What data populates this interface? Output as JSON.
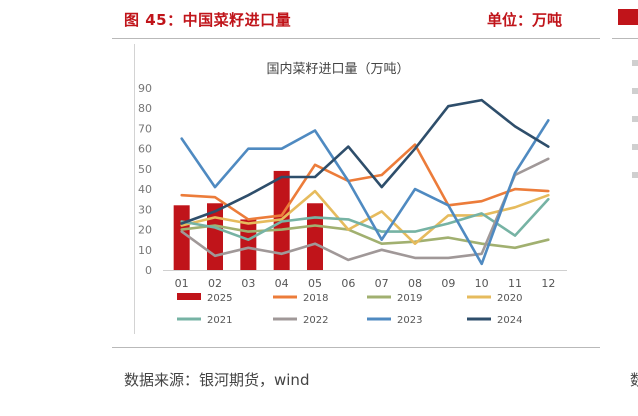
{
  "header": {
    "title": "图 45：中国菜籽进口量",
    "unit": "单位：万吨"
  },
  "source": "数据来源：银河期货，wind",
  "chart_data": {
    "type": "bar+line",
    "title": "国内菜籽进口量（万吨）",
    "categories": [
      "01",
      "02",
      "03",
      "04",
      "05",
      "06",
      "07",
      "08",
      "09",
      "10",
      "11",
      "12"
    ],
    "ylim": [
      0,
      90
    ],
    "yticks": [
      0,
      10,
      20,
      30,
      40,
      50,
      60,
      70,
      80,
      90
    ],
    "grid": false,
    "legend_position": "bottom",
    "bar_series": {
      "name": "2025",
      "color": "#c0141a",
      "values": [
        32,
        33,
        25,
        49,
        33
      ]
    },
    "series": [
      {
        "name": "2018",
        "color": "#ec7c3a",
        "values": [
          37,
          36,
          25,
          27,
          52,
          44,
          47,
          62,
          32,
          34,
          40,
          39
        ]
      },
      {
        "name": "2019",
        "color": "#a1b070",
        "values": [
          20,
          22,
          19,
          20,
          22,
          20,
          13,
          14,
          16,
          13,
          11,
          15
        ]
      },
      {
        "name": "2020",
        "color": "#e6bb5d",
        "values": [
          22,
          26,
          23,
          25,
          39,
          20,
          29,
          13,
          27,
          27,
          31,
          37
        ]
      },
      {
        "name": "2021",
        "color": "#76b3a4",
        "values": [
          24,
          21,
          15,
          24,
          26,
          25,
          19,
          19,
          23,
          28,
          17,
          35
        ]
      },
      {
        "name": "2022",
        "color": "#a09898",
        "values": [
          19,
          7,
          11,
          8,
          13,
          5,
          10,
          6,
          6,
          8,
          47,
          55
        ]
      },
      {
        "name": "2023",
        "color": "#4f8ac1",
        "values": [
          65,
          41,
          60,
          60,
          69,
          44,
          15,
          40,
          32,
          3,
          48,
          74
        ]
      },
      {
        "name": "2024",
        "color": "#2e4e6b",
        "values": [
          23,
          29,
          37,
          46,
          46,
          61,
          41,
          60,
          81,
          84,
          71,
          61
        ]
      }
    ]
  }
}
